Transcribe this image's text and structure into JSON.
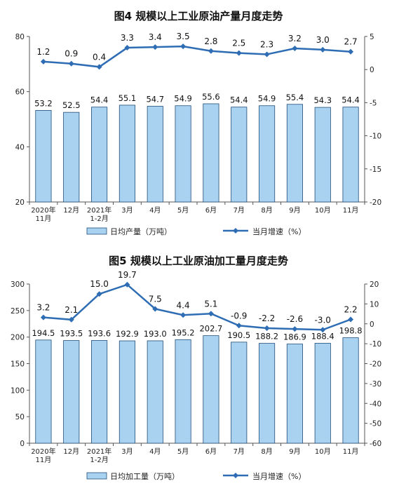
{
  "chart_data": [
    {
      "type": "bar+line",
      "title": "图4  规模以上工业原油产量月度走势",
      "categories": [
        [
          "2020年",
          "11月"
        ],
        [
          "12月"
        ],
        [
          "2021年",
          "1-2月"
        ],
        [
          "3月"
        ],
        [
          "4月"
        ],
        [
          "5月"
        ],
        [
          "6月"
        ],
        [
          "7月"
        ],
        [
          "8月"
        ],
        [
          "9月"
        ],
        [
          "10月"
        ],
        [
          "11月"
        ]
      ],
      "series": [
        {
          "name": "日均产量（万吨）",
          "type": "bar",
          "axis": "left",
          "values": [
            53.2,
            52.5,
            54.4,
            55.1,
            54.7,
            54.9,
            55.6,
            54.4,
            54.9,
            55.4,
            54.3,
            54.4
          ],
          "labels": [
            "53.2",
            "52.5",
            "54.4",
            "55.1",
            "54.7",
            "54.9",
            "55.6",
            "54.4",
            "54.9",
            "55.4",
            "54.3",
            "54.4"
          ]
        },
        {
          "name": "当月增速（%）",
          "type": "line",
          "axis": "right",
          "values": [
            1.2,
            0.9,
            0.4,
            3.3,
            3.4,
            3.5,
            2.8,
            2.5,
            2.3,
            3.2,
            3.0,
            2.7
          ],
          "labels": [
            "1.2",
            "0.9",
            "0.4",
            "3.3",
            "3.4",
            "3.5",
            "2.8",
            "2.5",
            "2.3",
            "3.2",
            "3.0",
            "2.7"
          ]
        }
      ],
      "ylim_left": [
        20,
        80
      ],
      "yticks_left": [
        "20",
        "40",
        "60",
        "80"
      ],
      "ylim_right": [
        -20,
        5
      ],
      "yticks_right": [
        "-20",
        "-15",
        "-10",
        "-5",
        "0",
        "5"
      ],
      "legend_position": "bottom",
      "bar_color": "#a9d1f0",
      "line_color": "#2e6db4"
    },
    {
      "type": "bar+line",
      "title": "图5  规模以上工业原油加工量月度走势",
      "categories": [
        [
          "2020年",
          "11月"
        ],
        [
          "12月"
        ],
        [
          "2021年",
          "1-2月"
        ],
        [
          "3月"
        ],
        [
          "4月"
        ],
        [
          "5月"
        ],
        [
          "6月"
        ],
        [
          "7月"
        ],
        [
          "8月"
        ],
        [
          "9月"
        ],
        [
          "10月"
        ],
        [
          "11月"
        ]
      ],
      "series": [
        {
          "name": "日均加工量（万吨）",
          "type": "bar",
          "axis": "left",
          "values": [
            194.5,
            193.5,
            193.6,
            192.9,
            193.0,
            195.2,
            202.7,
            190.5,
            188.2,
            186.9,
            188.4,
            198.8
          ],
          "labels": [
            "194.5",
            "193.5",
            "193.6",
            "192.9",
            "193.0",
            "195.2",
            "202.7",
            "190.5",
            "188.2",
            "186.9",
            "188.4",
            "198.8"
          ]
        },
        {
          "name": "当月增速（%）",
          "type": "line",
          "axis": "right",
          "values": [
            3.2,
            2.1,
            15.0,
            19.7,
            7.5,
            4.4,
            5.1,
            -0.9,
            -2.2,
            -2.6,
            -3.0,
            2.2
          ],
          "labels": [
            "3.2",
            "2.1",
            "15.0",
            "19.7",
            "7.5",
            "4.4",
            "5.1",
            "-0.9",
            "-2.2",
            "-2.6",
            "-3.0",
            "2.2"
          ]
        }
      ],
      "ylim_left": [
        0,
        300
      ],
      "yticks_left": [
        "0",
        "50",
        "100",
        "150",
        "200",
        "250",
        "300"
      ],
      "ylim_right": [
        -60,
        20
      ],
      "yticks_right": [
        "-60",
        "-50",
        "-40",
        "-30",
        "-20",
        "-10",
        "0",
        "10",
        "20"
      ],
      "legend_position": "bottom",
      "bar_color": "#a9d1f0",
      "line_color": "#2e6db4"
    }
  ]
}
